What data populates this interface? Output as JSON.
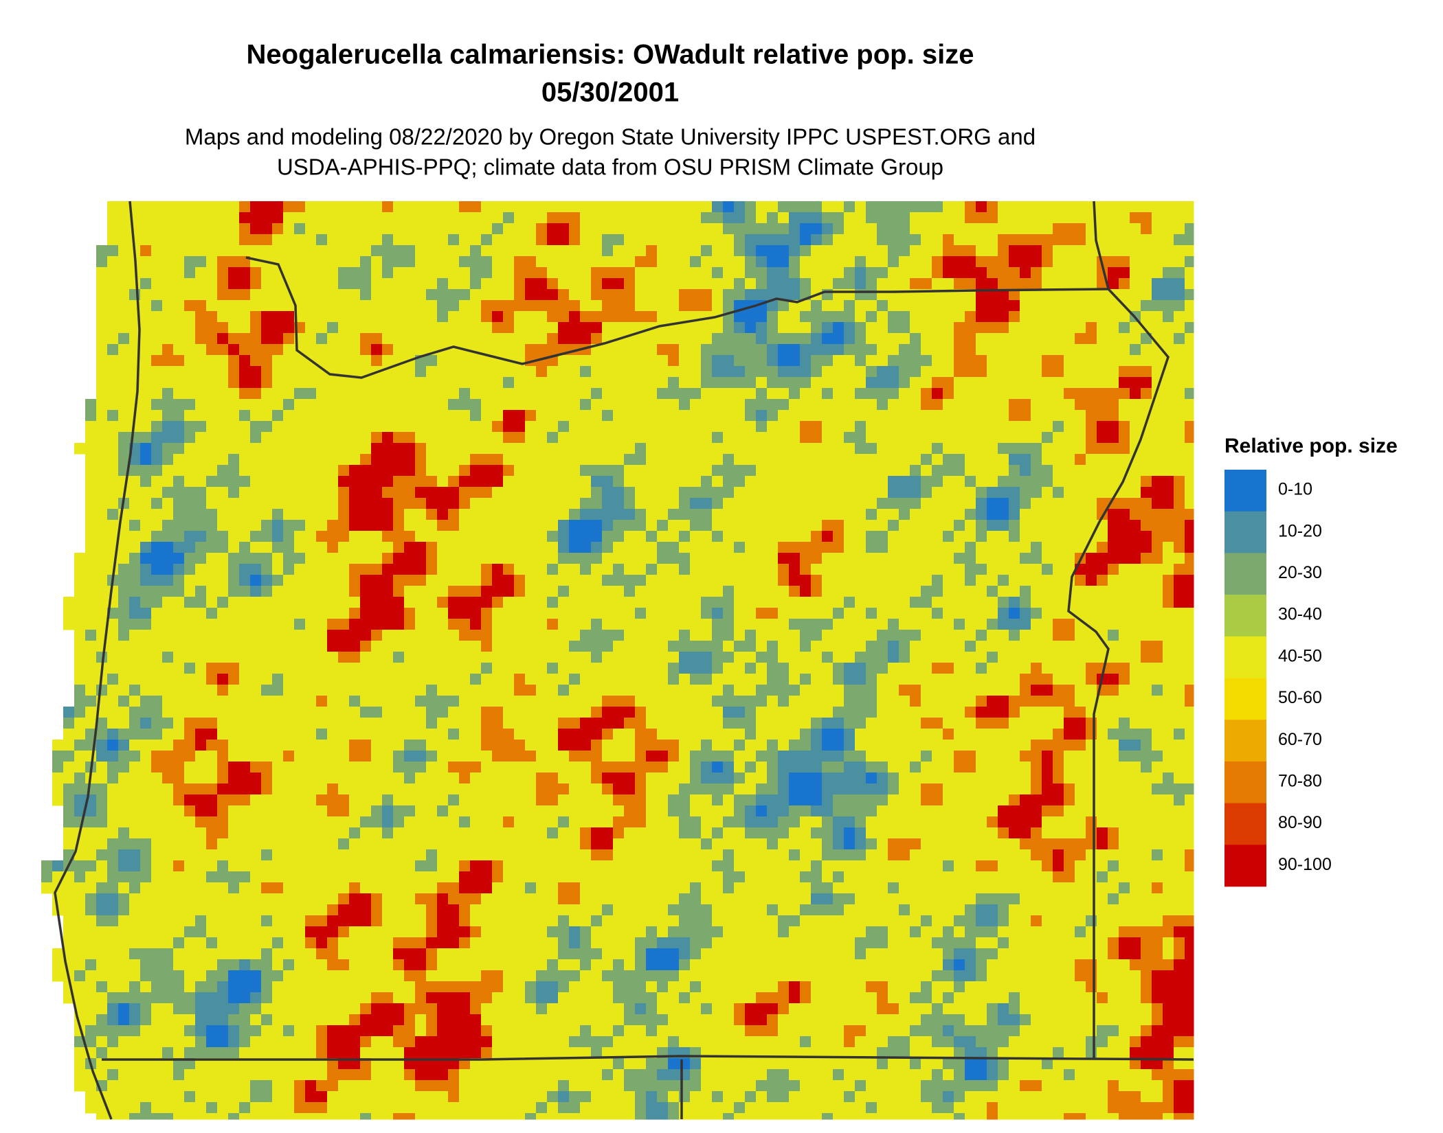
{
  "title": [
    "Neogalerucella calmariensis: OWadult relative pop. size",
    "05/30/2001"
  ],
  "subtitle": [
    "Maps and modeling 08/22/2020 by Oregon State University IPPC USPEST.ORG and",
    "USDA-APHIS-PPQ; climate data from OSU PRISM Climate Group"
  ],
  "legend": {
    "title": "Relative pop. size",
    "items": [
      {
        "label": "0-10",
        "color": "#1874cd"
      },
      {
        "label": "10-20",
        "color": "#4a90a0"
      },
      {
        "label": "20-30",
        "color": "#7caa6e"
      },
      {
        "label": "30-40",
        "color": "#aacc44"
      },
      {
        "label": "40-50",
        "color": "#e8e818"
      },
      {
        "label": "50-60",
        "color": "#f5dc00"
      },
      {
        "label": "60-70",
        "color": "#edaa00"
      },
      {
        "label": "70-80",
        "color": "#e57a00"
      },
      {
        "label": "80-90",
        "color": "#dd3a00"
      },
      {
        "label": "90-100",
        "color": "#cc0000"
      }
    ]
  }
}
